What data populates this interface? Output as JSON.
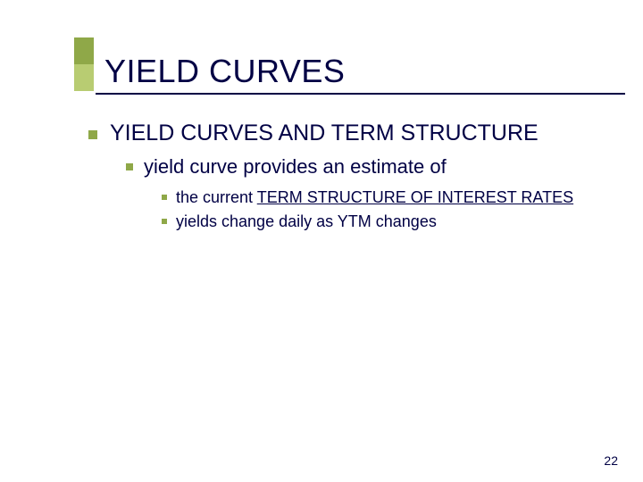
{
  "accent": {
    "top_color": "#8fa848",
    "bottom_color": "#b8cc72"
  },
  "text_color": "#000044",
  "underline_color": "#000044",
  "bullet_color": "#8fa848",
  "background_color": "#ffffff",
  "title": "YIELD CURVES",
  "title_fontsize": 36,
  "lvl1_fontsize": 25,
  "lvl2_fontsize": 22,
  "lvl3_fontsize": 18,
  "lvl1_text": "YIELD CURVES AND TERM STRUCTURE",
  "lvl2_text": "yield curve provides an estimate  of",
  "lvl3_a_prefix": "the current ",
  "lvl3_a_underlined": "TERM STRUCTURE OF INTEREST RATES",
  "lvl3_b": "yields change daily as YTM changes",
  "page_number": "22"
}
